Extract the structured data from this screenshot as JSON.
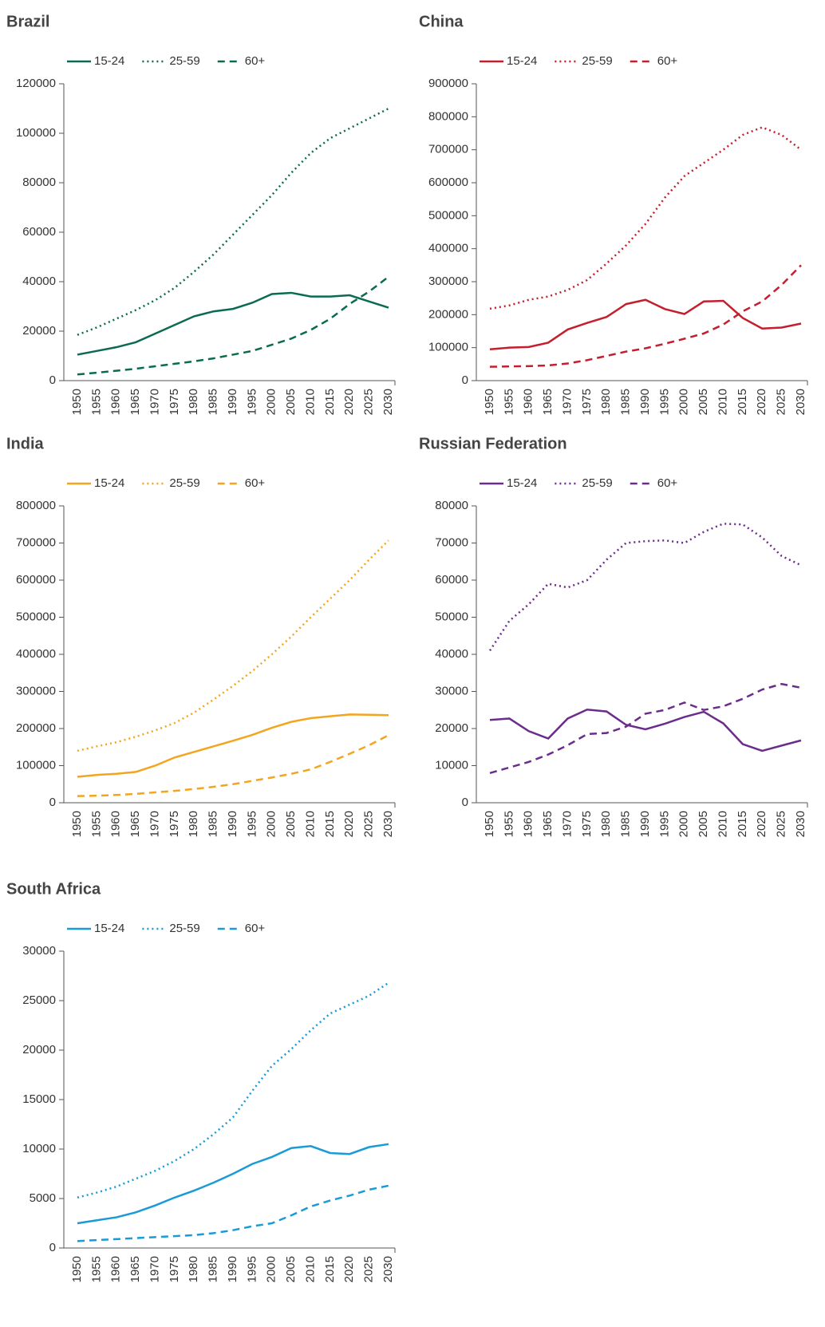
{
  "chart_data": [
    {
      "type": "line",
      "title": "Brazil",
      "categories": [
        "1950",
        "1955",
        "1960",
        "1965",
        "1970",
        "1975",
        "1980",
        "1985",
        "1990",
        "1995",
        "2000",
        "2005",
        "2010",
        "2015",
        "2020",
        "2025",
        "2030"
      ],
      "ylim": [
        0,
        120000
      ],
      "yticks": [
        0,
        20000,
        40000,
        60000,
        80000,
        100000,
        120000
      ],
      "series": [
        {
          "name": "15-24",
          "color": "#0b6b52",
          "linestyle": "solid",
          "values": [
            10500,
            12000,
            13500,
            15500,
            19000,
            22500,
            26000,
            28000,
            29000,
            31500,
            35000,
            35500,
            34000,
            34000,
            34500,
            32000,
            29500
          ]
        },
        {
          "name": "25-59",
          "color": "#0b6b52",
          "linestyle": "dotted",
          "values": [
            18500,
            21500,
            25000,
            28500,
            32500,
            37500,
            44000,
            51000,
            59000,
            67000,
            75000,
            84000,
            92000,
            98000,
            102000,
            106000,
            110000
          ]
        },
        {
          "name": "60+",
          "color": "#0b6b52",
          "linestyle": "dashed",
          "values": [
            2500,
            3200,
            4000,
            4800,
            5800,
            6800,
            7800,
            9000,
            10500,
            12000,
            14500,
            17000,
            20500,
            25000,
            31000,
            36000,
            42000
          ]
        }
      ]
    },
    {
      "type": "line",
      "title": "China",
      "categories": [
        "1950",
        "1955",
        "1960",
        "1965",
        "1970",
        "1975",
        "1980",
        "1985",
        "1990",
        "1995",
        "2000",
        "2005",
        "2010",
        "2015",
        "2020",
        "2025",
        "2030"
      ],
      "ylim": [
        0,
        900000
      ],
      "yticks": [
        0,
        100000,
        200000,
        300000,
        400000,
        500000,
        600000,
        700000,
        800000,
        900000
      ],
      "series": [
        {
          "name": "15-24",
          "color": "#c31f2f",
          "linestyle": "solid",
          "values": [
            95000,
            100000,
            102000,
            115000,
            155000,
            175000,
            193000,
            232000,
            245000,
            217000,
            202000,
            240000,
            242000,
            190000,
            158000,
            161000,
            173000
          ]
        },
        {
          "name": "25-59",
          "color": "#c31f2f",
          "linestyle": "dotted",
          "values": [
            218000,
            228000,
            245000,
            255000,
            275000,
            305000,
            355000,
            410000,
            475000,
            555000,
            620000,
            660000,
            700000,
            745000,
            768000,
            745000,
            700000
          ]
        },
        {
          "name": "60+",
          "color": "#c31f2f",
          "linestyle": "dashed",
          "values": [
            42000,
            43000,
            44000,
            46000,
            52000,
            62000,
            75000,
            88000,
            98000,
            112000,
            127000,
            143000,
            170000,
            210000,
            240000,
            290000,
            350000
          ]
        }
      ]
    },
    {
      "type": "line",
      "title": "India",
      "categories": [
        "1950",
        "1955",
        "1960",
        "1965",
        "1970",
        "1975",
        "1980",
        "1985",
        "1990",
        "1995",
        "2000",
        "2005",
        "2010",
        "2015",
        "2020",
        "2025",
        "2030"
      ],
      "ylim": [
        0,
        800000
      ],
      "yticks": [
        0,
        100000,
        200000,
        300000,
        400000,
        500000,
        600000,
        700000,
        800000
      ],
      "series": [
        {
          "name": "15-24",
          "color": "#f3a51f",
          "linestyle": "solid",
          "values": [
            70000,
            75000,
            78000,
            83000,
            100000,
            122000,
            137000,
            152000,
            167000,
            183000,
            202000,
            218000,
            228000,
            233000,
            238000,
            237000,
            236000
          ]
        },
        {
          "name": "25-59",
          "color": "#f3a51f",
          "linestyle": "dotted",
          "values": [
            140000,
            152000,
            163000,
            178000,
            195000,
            215000,
            243000,
            278000,
            315000,
            355000,
            400000,
            448000,
            500000,
            550000,
            600000,
            655000,
            707000
          ]
        },
        {
          "name": "60+",
          "color": "#f3a51f",
          "linestyle": "dashed",
          "values": [
            18000,
            19000,
            21000,
            24000,
            28000,
            32000,
            37000,
            43000,
            50000,
            59000,
            68000,
            78000,
            90000,
            110000,
            132000,
            155000,
            182000
          ]
        }
      ]
    },
    {
      "type": "line",
      "title": "Russian Federation",
      "categories": [
        "1950",
        "1955",
        "1960",
        "1965",
        "1970",
        "1975",
        "1980",
        "1985",
        "1990",
        "1995",
        "2000",
        "2005",
        "2010",
        "2015",
        "2020",
        "2025",
        "2030"
      ],
      "ylim": [
        0,
        80000
      ],
      "yticks": [
        0,
        10000,
        20000,
        30000,
        40000,
        50000,
        60000,
        70000,
        80000
      ],
      "series": [
        {
          "name": "15-24",
          "color": "#6b2d8b",
          "linestyle": "solid",
          "values": [
            22300,
            22700,
            19300,
            17300,
            22700,
            25100,
            24600,
            21000,
            19800,
            21300,
            23100,
            24500,
            21400,
            15800,
            14000,
            15400,
            16800
          ]
        },
        {
          "name": "25-59",
          "color": "#6b2d8b",
          "linestyle": "dotted",
          "values": [
            41000,
            49000,
            53500,
            59000,
            58000,
            60000,
            65500,
            70000,
            70500,
            70700,
            70000,
            73000,
            75200,
            75000,
            71500,
            66500,
            64000
          ]
        },
        {
          "name": "60+",
          "color": "#6b2d8b",
          "linestyle": "dashed",
          "values": [
            8000,
            9500,
            11000,
            13000,
            15500,
            18500,
            18800,
            20500,
            24000,
            25000,
            27000,
            25000,
            26000,
            28000,
            30500,
            32000,
            31000
          ]
        }
      ]
    },
    {
      "type": "line",
      "title": "South Africa",
      "categories": [
        "1950",
        "1955",
        "1960",
        "1965",
        "1970",
        "1975",
        "1980",
        "1985",
        "1990",
        "1995",
        "2000",
        "2005",
        "2010",
        "2015",
        "2020",
        "2025",
        "2030"
      ],
      "ylim": [
        0,
        30000
      ],
      "yticks": [
        0,
        5000,
        10000,
        15000,
        20000,
        25000,
        30000
      ],
      "series": [
        {
          "name": "15-24",
          "color": "#1a9bd7",
          "linestyle": "solid",
          "values": [
            2500,
            2800,
            3100,
            3600,
            4300,
            5100,
            5800,
            6600,
            7500,
            8500,
            9200,
            10100,
            10300,
            9600,
            9500,
            10200,
            10500
          ]
        },
        {
          "name": "25-59",
          "color": "#1a9bd7",
          "linestyle": "dotted",
          "values": [
            5100,
            5600,
            6200,
            7000,
            7800,
            8800,
            10000,
            11500,
            13200,
            15900,
            18400,
            20100,
            22000,
            23700,
            24600,
            25500,
            26800
          ]
        },
        {
          "name": "60+",
          "color": "#1a9bd7",
          "linestyle": "dashed",
          "values": [
            700,
            800,
            900,
            1000,
            1100,
            1200,
            1300,
            1500,
            1800,
            2200,
            2500,
            3300,
            4200,
            4800,
            5300,
            5900,
            6300
          ]
        }
      ]
    }
  ]
}
